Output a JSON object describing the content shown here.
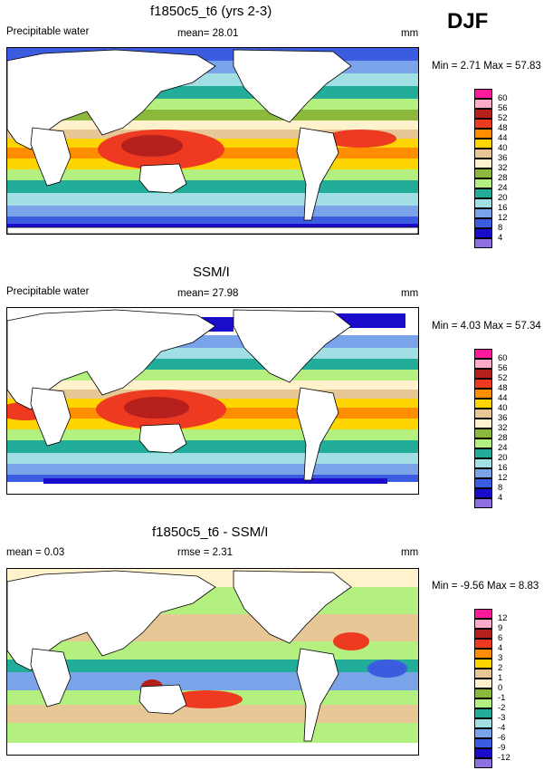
{
  "season": "DJF",
  "panels": [
    {
      "title": "f1850c5_t6 (yrs 2-3)",
      "left_label": "Precipitable water",
      "center_label": "mean=  28.01",
      "units": "mm",
      "minmax": "Min =  2.71 Max =  57.83",
      "legend": {
        "ticks": [
          "60",
          "56",
          "52",
          "48",
          "44",
          "40",
          "36",
          "32",
          "28",
          "24",
          "20",
          "16",
          "12",
          "8",
          "4"
        ],
        "colors": [
          "#ff1a9c",
          "#ffaac8",
          "#b5201c",
          "#ee3a20",
          "#ff8d00",
          "#ffd500",
          "#e6c795",
          "#fff2cd",
          "#8cb83c",
          "#b3f07f",
          "#22ad9a",
          "#a2dfe4",
          "#7ba3ea",
          "#3c5ce0",
          "#1b0ccc",
          "#8f70e0"
        ]
      }
    },
    {
      "title": "SSM/I",
      "left_label": "Precipitable water",
      "center_label": "mean=  27.98",
      "units": "mm",
      "minmax": "Min =  4.03 Max =  57.34",
      "legend": {
        "ticks": [
          "60",
          "56",
          "52",
          "48",
          "44",
          "40",
          "36",
          "32",
          "28",
          "24",
          "20",
          "16",
          "12",
          "8",
          "4"
        ],
        "colors": [
          "#ff1a9c",
          "#ffaac8",
          "#b5201c",
          "#ee3a20",
          "#ff8d00",
          "#ffd500",
          "#e6c795",
          "#fff2cd",
          "#8cb83c",
          "#b3f07f",
          "#22ad9a",
          "#a2dfe4",
          "#7ba3ea",
          "#3c5ce0",
          "#1b0ccc",
          "#8f70e0"
        ]
      }
    },
    {
      "title": "f1850c5_t6 - SSM/I",
      "left_label": "mean =  0.03",
      "center_label": "rmse =  2.31",
      "units": "mm",
      "minmax": "Min =  -9.56 Max =  8.83",
      "legend": {
        "ticks": [
          "12",
          "9",
          "6",
          "4",
          "3",
          "2",
          "1",
          "0",
          "-1",
          "-2",
          "-3",
          "-4",
          "-6",
          "-9",
          "-12"
        ],
        "colors": [
          "#ff1a9c",
          "#ffaac8",
          "#b5201c",
          "#ee3a20",
          "#ff8d00",
          "#ffd500",
          "#e6c795",
          "#fff2cd",
          "#8cb83c",
          "#b3f07f",
          "#22ad9a",
          "#a2dfe4",
          "#7ba3ea",
          "#3c5ce0",
          "#1b0ccc",
          "#8f70e0"
        ]
      }
    }
  ]
}
